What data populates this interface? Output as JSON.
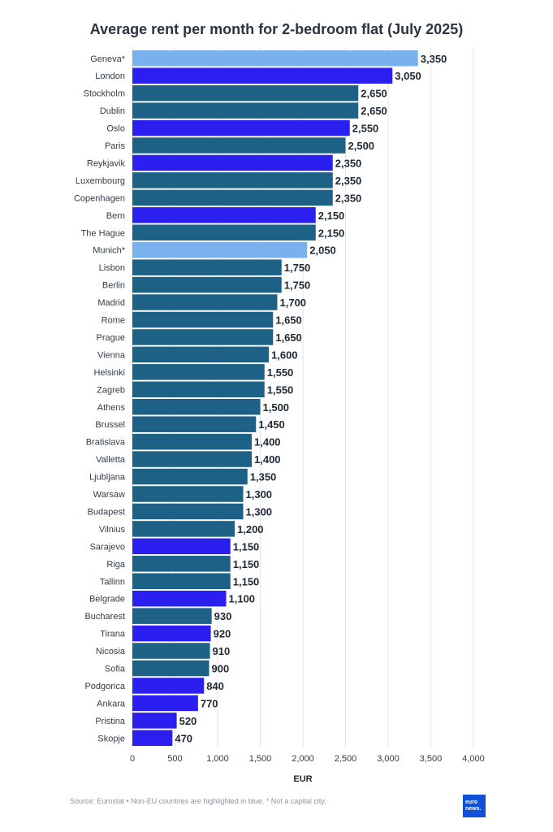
{
  "title": "Average rent per month for 2-bedroom flat (July 2025)",
  "footer": "Source: Eurostat • Non-EU countries are highlighted in blue. * Not a capital city.",
  "logo": {
    "line1": "euro",
    "line2": "news."
  },
  "colors": {
    "eu": "#1d6187",
    "non_eu": "#2b1ff0",
    "not_capital": "#79b1ec"
  },
  "chart_data": {
    "type": "bar",
    "orientation": "horizontal",
    "title": "Average rent per month for 2-bedroom flat (July 2025)",
    "xlabel": "EUR",
    "xlim": [
      0,
      4000
    ],
    "xticks": [
      0,
      500,
      1000,
      1500,
      2000,
      2500,
      3000,
      3500,
      4000
    ],
    "xtick_labels": [
      "0",
      "500",
      "1,000",
      "1,500",
      "2,000",
      "2,500",
      "3,000",
      "3,500",
      "4,000"
    ],
    "grid": "vertical",
    "categories": [
      "Geneva*",
      "London",
      "Stockholm",
      "Dublin",
      "Oslo",
      "Paris",
      "Reykjavik",
      "Luxembourg",
      "Copenhagen",
      "Bern",
      "The Hague",
      "Munich*",
      "Lisbon",
      "Berlin",
      "Madrid",
      "Rome",
      "Prague",
      "Vienna",
      "Helsinki",
      "Zagreb",
      "Athens",
      "Brussel",
      "Bratislava",
      "Valletta",
      "Ljubljana",
      "Warsaw",
      "Budapest",
      "Vilnius",
      "Sarajevo",
      "Riga",
      "Tallinn",
      "Belgrade",
      "Bucharest",
      "Tirana",
      "Nicosia",
      "Sofia",
      "Podgorica",
      "Ankara",
      "Pristina",
      "Skopje"
    ],
    "values": [
      3350,
      3050,
      2650,
      2650,
      2550,
      2500,
      2350,
      2350,
      2350,
      2150,
      2150,
      2050,
      1750,
      1750,
      1700,
      1650,
      1650,
      1600,
      1550,
      1550,
      1500,
      1450,
      1400,
      1400,
      1350,
      1300,
      1300,
      1200,
      1150,
      1150,
      1150,
      1100,
      930,
      920,
      910,
      900,
      840,
      770,
      520,
      470
    ],
    "value_labels": [
      "3,350",
      "3,050",
      "2,650",
      "2,650",
      "2,550",
      "2,500",
      "2,350",
      "2,350",
      "2,350",
      "2,150",
      "2,150",
      "2,050",
      "1,750",
      "1,750",
      "1,700",
      "1,650",
      "1,650",
      "1,600",
      "1,550",
      "1,550",
      "1,500",
      "1,450",
      "1,400",
      "1,400",
      "1,350",
      "1,300",
      "1,300",
      "1,200",
      "1,150",
      "1,150",
      "1,150",
      "1,100",
      "930",
      "920",
      "910",
      "900",
      "840",
      "770",
      "520",
      "470"
    ],
    "groups": [
      "not_capital",
      "non_eu",
      "eu",
      "eu",
      "non_eu",
      "eu",
      "non_eu",
      "eu",
      "eu",
      "non_eu",
      "eu",
      "not_capital",
      "eu",
      "eu",
      "eu",
      "eu",
      "eu",
      "eu",
      "eu",
      "eu",
      "eu",
      "eu",
      "eu",
      "eu",
      "eu",
      "eu",
      "eu",
      "eu",
      "non_eu",
      "eu",
      "eu",
      "non_eu",
      "eu",
      "non_eu",
      "eu",
      "eu",
      "non_eu",
      "non_eu",
      "non_eu",
      "non_eu"
    ]
  }
}
